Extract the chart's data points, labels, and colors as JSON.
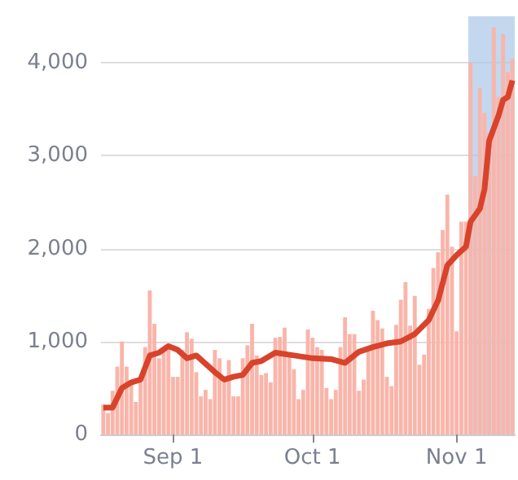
{
  "chart_data": {
    "type": "bar",
    "x": [
      "--08-17",
      "--08-18",
      "--08-19",
      "--08-20",
      "--08-21",
      "--08-22",
      "--08-23",
      "--08-24",
      "--08-25",
      "--08-26",
      "--08-27",
      "--08-28",
      "--08-29",
      "--08-30",
      "--08-31",
      "--09-01",
      "--09-02",
      "--09-03",
      "--09-04",
      "--09-05",
      "--09-06",
      "--09-07",
      "--09-08",
      "--09-09",
      "--09-10",
      "--09-11",
      "--09-12",
      "--09-13",
      "--09-14",
      "--09-15",
      "--09-16",
      "--09-17",
      "--09-18",
      "--09-19",
      "--09-20",
      "--09-21",
      "--09-22",
      "--09-23",
      "--09-24",
      "--09-25",
      "--09-26",
      "--09-27",
      "--09-28",
      "--09-29",
      "--09-30",
      "--10-01",
      "--10-02",
      "--10-03",
      "--10-04",
      "--10-05",
      "--10-06",
      "--10-07",
      "--10-08",
      "--10-09",
      "--10-10",
      "--10-11",
      "--10-12",
      "--10-13",
      "--10-14",
      "--10-15",
      "--10-16",
      "--10-17",
      "--10-18",
      "--10-19",
      "--10-20",
      "--10-21",
      "--10-22",
      "--10-23",
      "--10-24",
      "--10-25",
      "--10-26",
      "--10-27",
      "--10-28",
      "--10-29",
      "--10-30",
      "--10-31",
      "--11-01",
      "--11-02",
      "--11-03",
      "--11-04",
      "--11-05",
      "--11-06",
      "--11-07",
      "--11-08",
      "--11-09",
      "--11-10",
      "--11-11",
      "--11-12",
      "--11-13"
    ],
    "series": [
      {
        "color": "#f9b5aa",
        "values": [
          320,
          230,
          470,
          730,
          1000,
          730,
          560,
          350,
          590,
          940,
          1550,
          1190,
          820,
          940,
          940,
          620,
          620,
          910,
          1100,
          1030,
          670,
          410,
          480,
          380,
          910,
          820,
          560,
          800,
          410,
          410,
          820,
          960,
          1190,
          850,
          640,
          660,
          560,
          1040,
          1050,
          1150,
          880,
          700,
          380,
          480,
          1130,
          1040,
          940,
          910,
          500,
          380,
          480,
          940,
          1260,
          1080,
          1080,
          470,
          590,
          940,
          1330,
          1230,
          1140,
          620,
          520,
          1180,
          1450,
          1640,
          1170,
          1490,
          750,
          860,
          1350,
          1790,
          1960,
          2200,
          2580,
          2020,
          1110,
          2290,
          2290,
          4000,
          2780,
          3730,
          3460,
          3250,
          4380,
          3630,
          4310,
          3900,
          4040
        ]
      },
      {
        "type": "line",
        "color": "#d9432b",
        "x": [
          "--08-17",
          "--08-19",
          "--08-21",
          "--08-23",
          "--08-25",
          "--08-27",
          "--08-29",
          "--08-31",
          "--09-02",
          "--09-04",
          "--09-06",
          "--09-08",
          "--09-10",
          "--09-12",
          "--09-14",
          "--09-16",
          "--09-18",
          "--09-20",
          "--09-23",
          "--09-27",
          "--10-01",
          "--10-05",
          "--10-08",
          "--10-11",
          "--10-14",
          "--10-17",
          "--10-20",
          "--10-23",
          "--10-26",
          "--10-28",
          "--10-30",
          "--11-01",
          "--11-03",
          "--11-04",
          "--11-06",
          "--11-07",
          "--11-08",
          "--11-10",
          "--11-11",
          "--11-12",
          "--11-13"
        ],
        "values": [
          290,
          290,
          500,
          560,
          590,
          850,
          880,
          950,
          910,
          820,
          850,
          760,
          670,
          590,
          620,
          640,
          770,
          790,
          880,
          850,
          820,
          810,
          770,
          890,
          940,
          980,
          1000,
          1080,
          1230,
          1440,
          1820,
          1930,
          2020,
          2290,
          2430,
          2640,
          3160,
          3430,
          3600,
          3630,
          3810
        ]
      }
    ],
    "xlim": [
      "--08-16T12:00",
      "--11-13T12:00"
    ],
    "xticks": [
      {
        "value": "--09-01",
        "label": "Sep 1"
      },
      {
        "value": "--10-01",
        "label": "Oct 1"
      },
      {
        "value": "--11-01",
        "label": "Nov 1"
      }
    ],
    "ylim": [
      0,
      4500
    ],
    "yticks": [
      {
        "value": 0,
        "label": "0"
      },
      {
        "value": 1000,
        "label": "1,000"
      },
      {
        "value": 2000,
        "label": "2,000"
      },
      {
        "value": 3000,
        "label": "3,000"
      },
      {
        "value": 4000,
        "label": "4,000"
      }
    ],
    "bands": [
      {
        "axis": "x",
        "from": "--11-03T12:00",
        "to": "--11-13T12:00",
        "color": "#a9c8e8"
      }
    ],
    "grid": "y"
  }
}
